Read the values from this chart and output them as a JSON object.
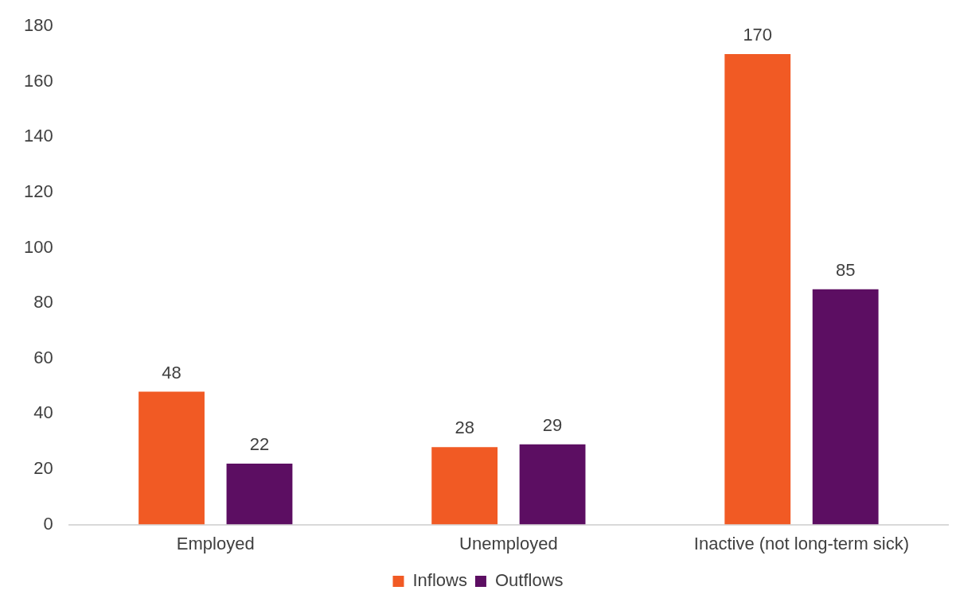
{
  "chart_data": {
    "type": "bar",
    "categories": [
      "Employed",
      "Unemployed",
      "Inactive (not long-term sick)"
    ],
    "series": [
      {
        "name": "Inflows",
        "color": "#f15a24",
        "values": [
          48,
          28,
          170
        ]
      },
      {
        "name": "Outflows",
        "color": "#5c0e62",
        "values": [
          22,
          29,
          85
        ]
      }
    ],
    "ylim": [
      0,
      180
    ],
    "yticks": [
      0,
      20,
      40,
      60,
      80,
      100,
      120,
      140,
      160,
      180
    ],
    "grid": false,
    "legend": "bottom",
    "data_labels": true
  }
}
